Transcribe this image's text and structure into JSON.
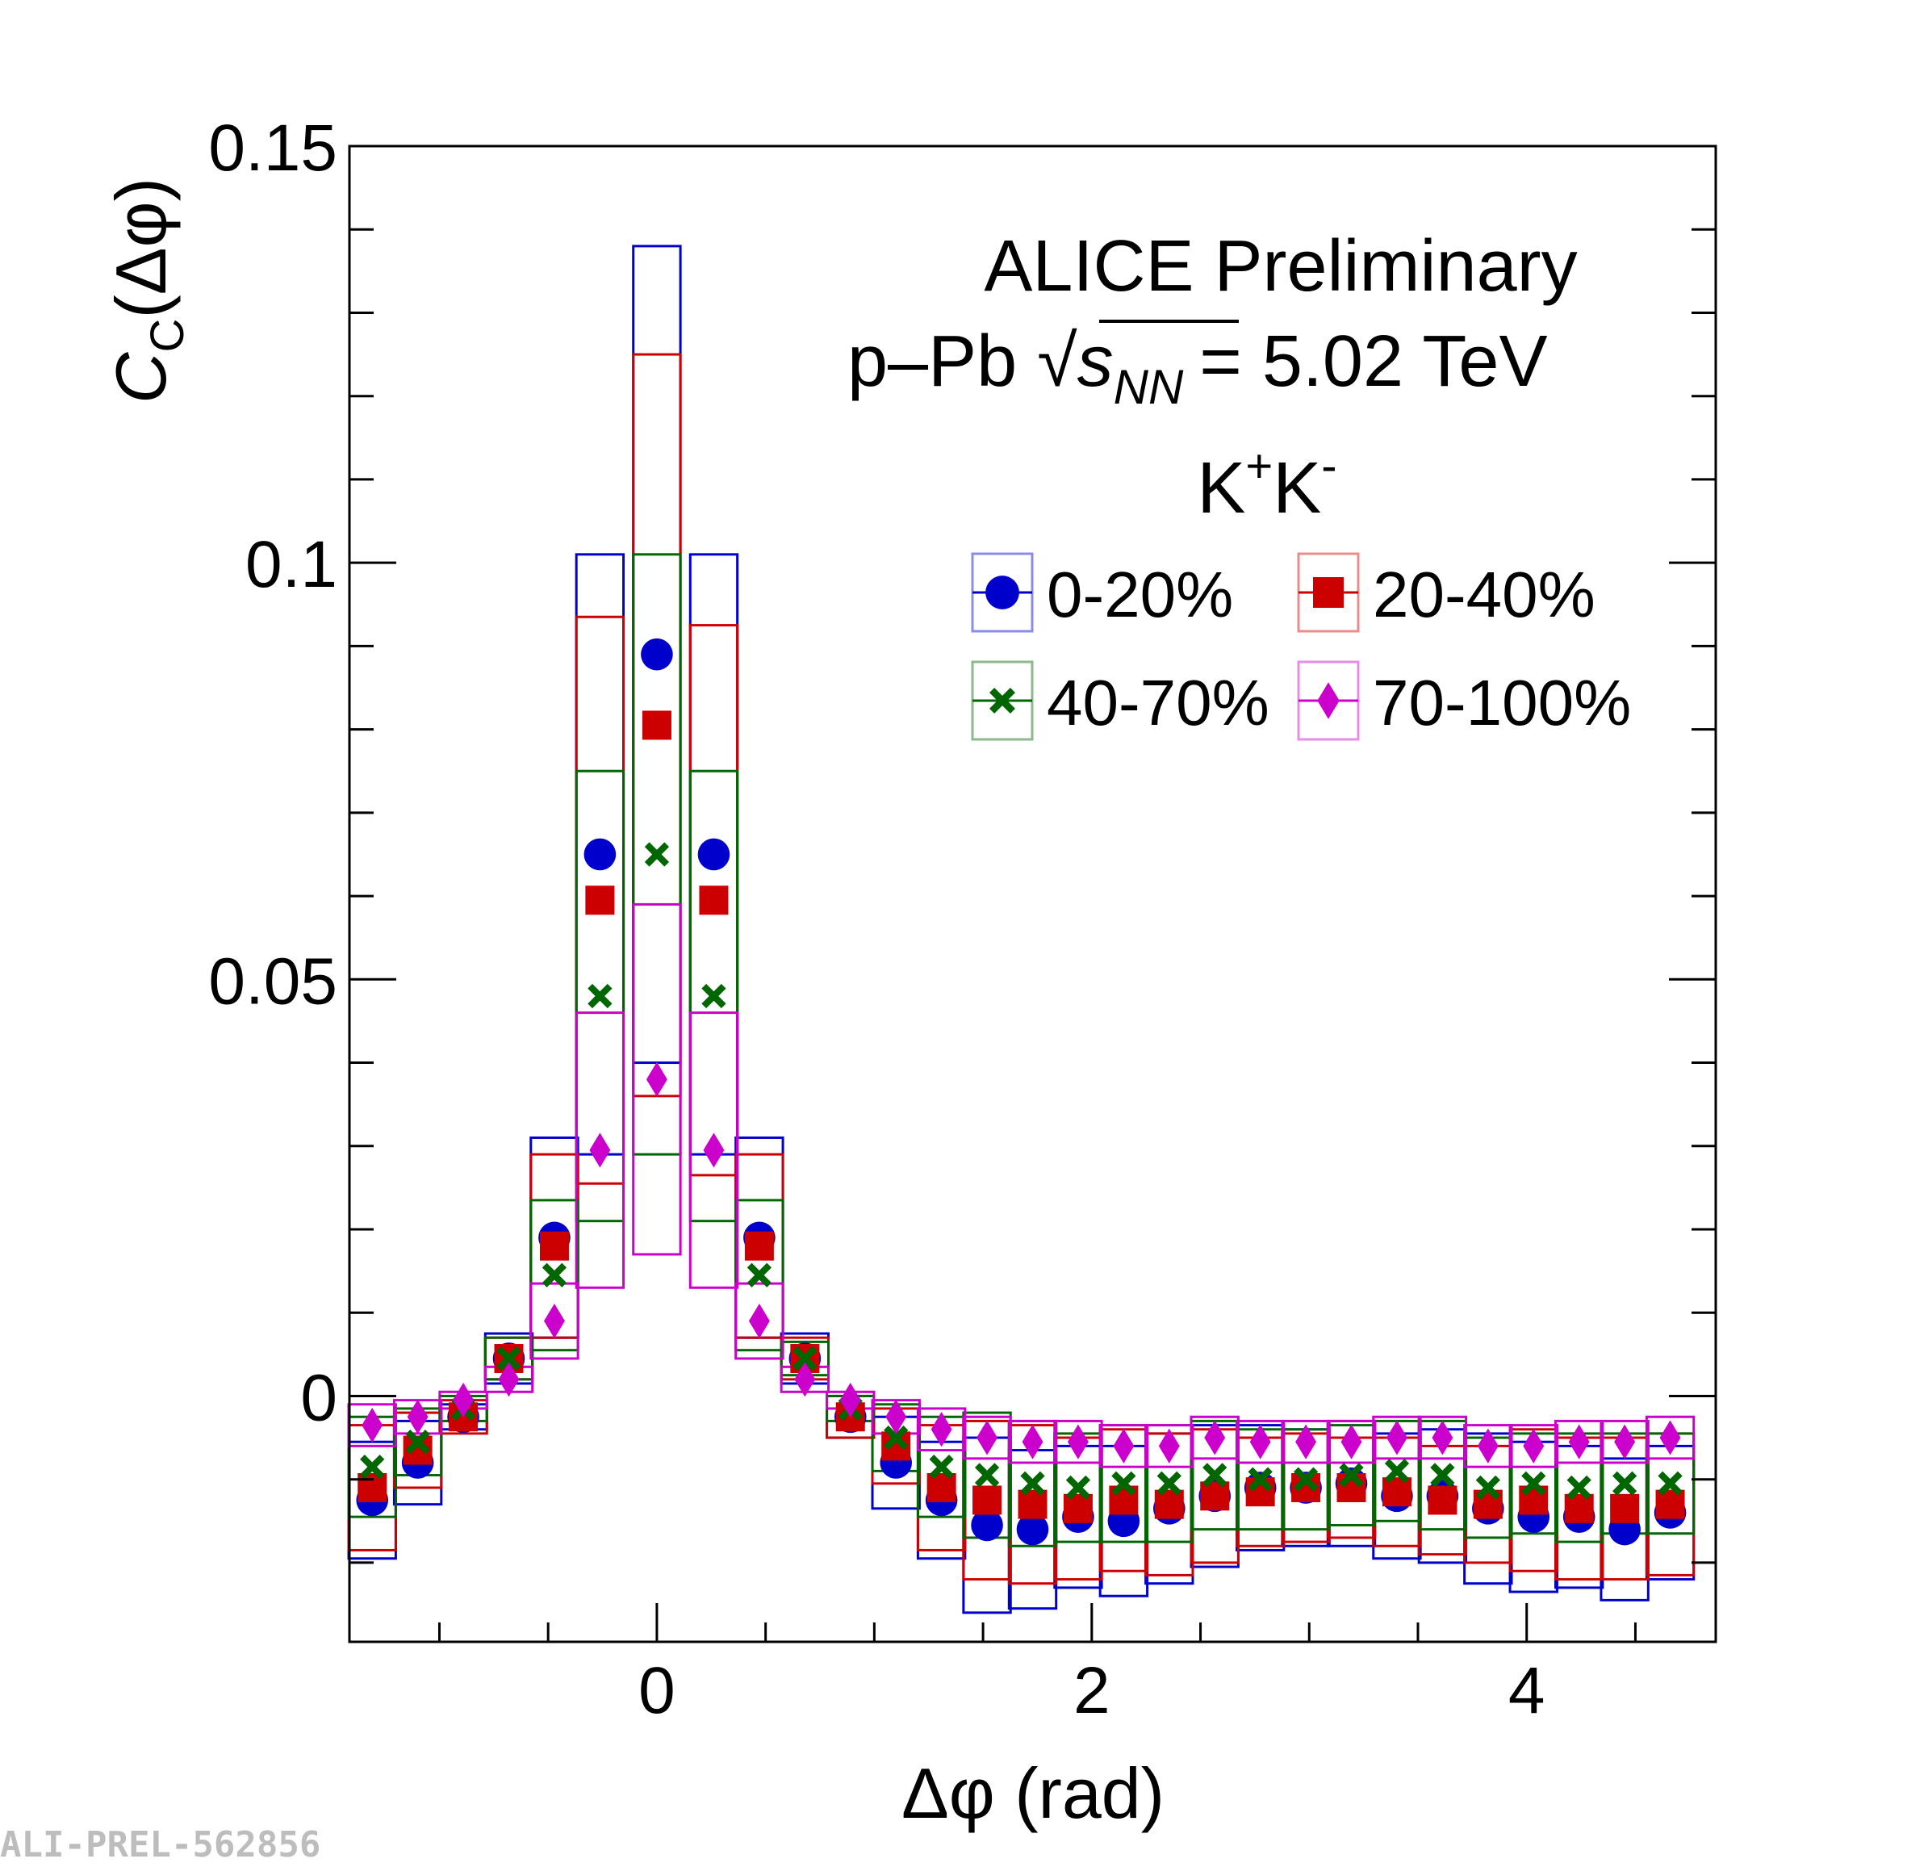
{
  "chart_data": {
    "type": "scatter",
    "title": "ALICE Preliminary",
    "system_prefix": "p–Pb",
    "energy_var": "s",
    "energy_sub": "NN",
    "energy_value": "= 5.02 TeV",
    "particle_base": "K",
    "particle_sup1": "+",
    "particle_sup2": "-",
    "xlabel": "Δφ (rad)",
    "ylabel_main": "C",
    "ylabel_sub": "C",
    "ylabel_arg": "(Δφ)",
    "xlim": [
      -1.4137,
      4.8695
    ],
    "ylim": [
      -0.0295,
      0.15
    ],
    "xticks": [
      {
        "v": 0,
        "label": "0"
      },
      {
        "v": 2,
        "label": "2"
      },
      {
        "v": 4,
        "label": "4"
      }
    ],
    "yticks": [
      {
        "v": 0,
        "label": "0"
      },
      {
        "v": 0.05,
        "label": "0.05"
      },
      {
        "v": 0.1,
        "label": "0.1"
      },
      {
        "v": 0.15,
        "label": "0.15"
      }
    ],
    "x": [
      -1.309,
      -1.0996,
      -0.8901,
      -0.6807,
      -0.4712,
      -0.2618,
      0.0,
      0.2618,
      0.4712,
      0.6807,
      0.8901,
      1.0996,
      1.309,
      1.5184,
      1.7279,
      1.9373,
      2.1468,
      2.3562,
      2.5656,
      2.7751,
      2.9845,
      3.1939,
      3.4034,
      3.6128,
      3.8223,
      4.0317,
      4.2412,
      4.4506,
      4.66
    ],
    "series": [
      {
        "name": "0-20%",
        "marker": "circle",
        "color": "#0000cc",
        "values": [
          -0.0125,
          -0.008,
          -0.0025,
          0.0045,
          0.019,
          0.065,
          0.089,
          0.065,
          0.019,
          0.0045,
          -0.0025,
          -0.008,
          -0.0125,
          -0.0155,
          -0.016,
          -0.0145,
          -0.015,
          -0.0135,
          -0.012,
          -0.011,
          -0.011,
          -0.0105,
          -0.012,
          -0.012,
          -0.0135,
          -0.0145,
          -0.0145,
          -0.016,
          -0.014
        ],
        "sys": [
          0.007,
          0.005,
          0.0015,
          0.003,
          0.012,
          0.036,
          0.049,
          0.036,
          0.012,
          0.003,
          0.0025,
          0.0055,
          0.007,
          0.0105,
          0.0095,
          0.0085,
          0.009,
          0.009,
          0.0085,
          0.0075,
          0.007,
          0.0075,
          0.0075,
          0.008,
          0.009,
          0.009,
          0.0085,
          0.0085,
          0.008
        ]
      },
      {
        "name": "20-40%",
        "marker": "square",
        "color": "#cc0000",
        "values": [
          -0.011,
          -0.0065,
          -0.0025,
          0.0045,
          0.018,
          0.0595,
          0.0805,
          0.0595,
          0.018,
          0.0045,
          -0.0025,
          -0.006,
          -0.011,
          -0.0125,
          -0.013,
          -0.0135,
          -0.0125,
          -0.013,
          -0.012,
          -0.0115,
          -0.011,
          -0.011,
          -0.0115,
          -0.0125,
          -0.013,
          -0.0125,
          -0.0135,
          -0.0135,
          -0.013
        ],
        "sys": [
          0.0075,
          0.0045,
          0.002,
          0.0025,
          0.011,
          0.034,
          0.0445,
          0.033,
          0.011,
          0.0025,
          0.0025,
          0.0045,
          0.0075,
          0.0095,
          0.0095,
          0.0085,
          0.0085,
          0.0085,
          0.008,
          0.0065,
          0.0065,
          0.006,
          0.0065,
          0.0065,
          0.007,
          0.0085,
          0.0085,
          0.0085,
          0.0085
        ]
      },
      {
        "name": "40-70%",
        "marker": "cross",
        "color": "#006600",
        "values": [
          -0.0085,
          -0.0055,
          -0.0015,
          0.0045,
          0.0145,
          0.048,
          0.065,
          0.048,
          0.0145,
          0.0045,
          -0.0015,
          -0.005,
          -0.0085,
          -0.0095,
          -0.0105,
          -0.011,
          -0.0105,
          -0.0105,
          -0.0095,
          -0.01,
          -0.01,
          -0.0095,
          -0.009,
          -0.0095,
          -0.011,
          -0.0105,
          -0.011,
          -0.0105,
          -0.0105
        ],
        "sys": [
          0.006,
          0.004,
          0.0015,
          0.0025,
          0.009,
          0.027,
          0.036,
          0.027,
          0.009,
          0.002,
          0.0015,
          0.004,
          0.006,
          0.0075,
          0.0075,
          0.0065,
          0.007,
          0.007,
          0.0065,
          0.006,
          0.006,
          0.006,
          0.006,
          0.0065,
          0.006,
          0.006,
          0.0065,
          0.006,
          0.006
        ]
      },
      {
        "name": "70-100%",
        "marker": "diamond",
        "color": "#cc00cc",
        "values": [
          -0.0035,
          -0.0025,
          -0.0005,
          0.002,
          0.009,
          0.0295,
          0.038,
          0.0295,
          0.009,
          0.002,
          -0.0005,
          -0.0025,
          -0.004,
          -0.005,
          -0.0055,
          -0.0055,
          -0.006,
          -0.006,
          -0.005,
          -0.0055,
          -0.0055,
          -0.0055,
          -0.005,
          -0.005,
          -0.006,
          -0.006,
          -0.0055,
          -0.0055,
          -0.005
        ],
        "sys": [
          0.0025,
          0.002,
          0.001,
          0.0015,
          0.0045,
          0.0165,
          0.021,
          0.0165,
          0.0045,
          0.0015,
          0.001,
          0.002,
          0.0025,
          0.0025,
          0.0025,
          0.0025,
          0.0025,
          0.0025,
          0.0025,
          0.0025,
          0.0025,
          0.0025,
          0.0025,
          0.0025,
          0.0025,
          0.0025,
          0.0025,
          0.0025,
          0.0025
        ]
      }
    ],
    "watermark": "ALI-PREL-562856"
  }
}
